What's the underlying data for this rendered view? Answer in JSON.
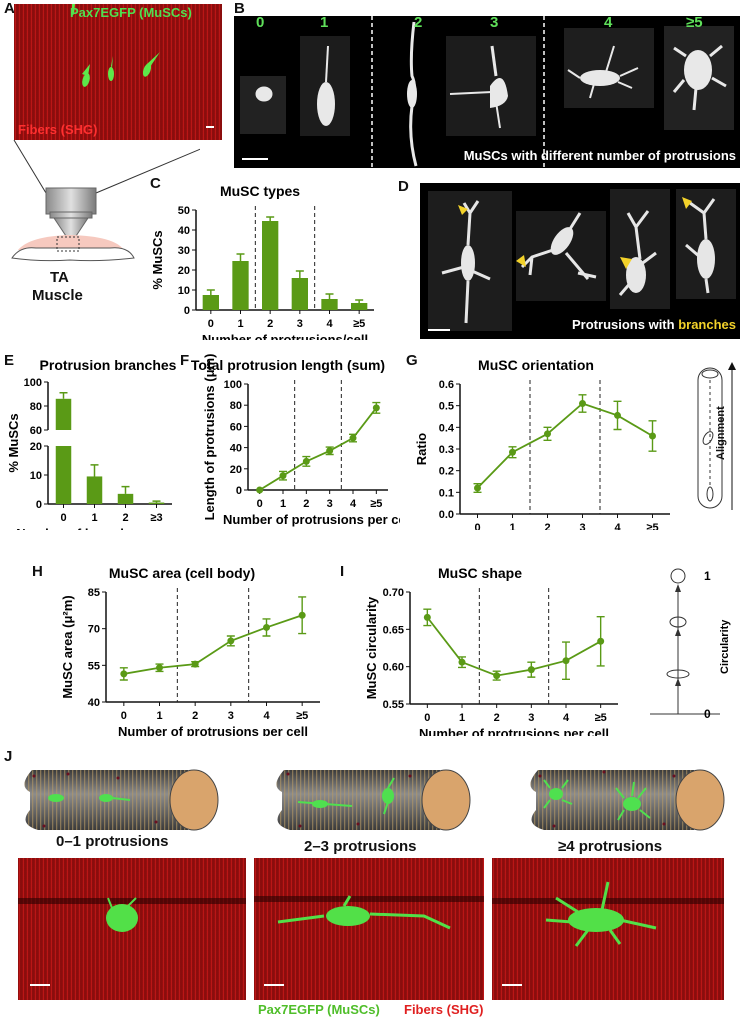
{
  "colors": {
    "green": "#5a9a16",
    "red": "#d42020",
    "yellow": "#f3d22a",
    "cellgreen": "#4fe04f"
  },
  "labels": {
    "A": "A",
    "B": "B",
    "C": "C",
    "D": "D",
    "E": "E",
    "F": "F",
    "G": "G",
    "H": "H",
    "I": "I",
    "J": "J"
  },
  "panelA": {
    "pax7": "Pax7EGFP (MuSCs)",
    "fibers": "Fibers (SHG)",
    "tissue": "TA",
    "muscle": "Muscle"
  },
  "panelB": {
    "nums": [
      "0",
      "1",
      "2",
      "3",
      "4",
      "≥5"
    ],
    "caption": "MuSCs with different number of protrusions"
  },
  "panelD": {
    "caption_a": "Protrusions with ",
    "caption_b": "branches"
  },
  "panelJ": {
    "groups": [
      "0–1 protrusions",
      "2–3 protrusions",
      "≥4 protrusions"
    ],
    "legend_green": "Pax7EGFP (MuSCs)",
    "legend_red": "Fibers (SHG)"
  },
  "chart_data": [
    {
      "id": "C",
      "type": "bar",
      "title": "MuSC types",
      "xlabel": "Number of protrusions/cell",
      "ylabel": "% MuSCs",
      "categories": [
        "0",
        "1",
        "2",
        "3",
        "4",
        "≥5"
      ],
      "values": [
        7.5,
        24.5,
        44.5,
        16,
        5.5,
        3.5
      ],
      "errors": [
        2.5,
        3.5,
        2,
        3.5,
        2.5,
        1.5
      ],
      "ylim": [
        0,
        50
      ],
      "yticks": [
        "0",
        "10",
        "20",
        "30",
        "40",
        "50"
      ]
    },
    {
      "id": "E",
      "type": "bar",
      "title": "Protrusion branches",
      "xlabel": "Number of branches per cell",
      "ylabel": "% MuSCs",
      "categories": [
        "0",
        "1",
        "2",
        "≥3"
      ],
      "values": [
        86,
        9.5,
        3.5,
        0.5
      ],
      "errors": [
        5,
        4,
        2.5,
        0.5
      ],
      "yticks": [
        "0",
        "10",
        "20",
        "60",
        "80",
        "100"
      ]
    },
    {
      "id": "F",
      "type": "line",
      "title": "Total protrusion length (sum)",
      "xlabel": "Number of protrusions per cell",
      "ylabel": "Length of protrusions (μm)",
      "categories": [
        "0",
        "1",
        "2",
        "3",
        "4",
        "≥5"
      ],
      "values": [
        0,
        13.5,
        27,
        37,
        49,
        77.5
      ],
      "errors": [
        0,
        4,
        4.5,
        3.5,
        3.5,
        5
      ],
      "ylim": [
        0,
        100
      ],
      "yticks": [
        "0",
        "20",
        "40",
        "60",
        "80",
        "100"
      ]
    },
    {
      "id": "G",
      "type": "line",
      "title": "MuSC orientation",
      "xlabel": "Number of protrusions per cell",
      "ylabel": "Ratio",
      "side_label": "Alignment",
      "categories": [
        "0",
        "1",
        "2",
        "3",
        "4",
        "≥5"
      ],
      "values": [
        0.12,
        0.285,
        0.37,
        0.51,
        0.455,
        0.36
      ],
      "errors": [
        0.02,
        0.025,
        0.03,
        0.04,
        0.065,
        0.07
      ],
      "ylim": [
        0,
        0.6
      ],
      "yticks": [
        "0.0",
        "0.1",
        "0.2",
        "0.3",
        "0.4",
        "0.5",
        "0.6"
      ]
    },
    {
      "id": "H",
      "type": "line",
      "title": "MuSC area (cell body)",
      "xlabel": "Number of protrusions per cell",
      "ylabel": "MuSC area (μ²m)",
      "categories": [
        "0",
        "1",
        "2",
        "3",
        "4",
        "≥5"
      ],
      "values": [
        51.5,
        54,
        55.5,
        65,
        70.5,
        75.5
      ],
      "errors": [
        2.5,
        1.5,
        1,
        2,
        3.5,
        7.5
      ],
      "ylim": [
        40,
        85
      ],
      "yticks": [
        "40",
        "55",
        "70",
        "85"
      ]
    },
    {
      "id": "I",
      "type": "line",
      "title": "MuSC shape",
      "xlabel": "Number of protrusions per cell",
      "ylabel": "MuSC circularity",
      "side_label": "Circularity",
      "side_top": "1",
      "side_bottom": "0",
      "categories": [
        "0",
        "1",
        "2",
        "3",
        "4",
        "≥5"
      ],
      "values": [
        0.666,
        0.606,
        0.588,
        0.596,
        0.608,
        0.634
      ],
      "errors": [
        0.011,
        0.007,
        0.006,
        0.01,
        0.025,
        0.033
      ],
      "ylim": [
        0.55,
        0.7
      ],
      "yticks": [
        "0.55",
        "0.60",
        "0.65",
        "0.70"
      ]
    }
  ]
}
